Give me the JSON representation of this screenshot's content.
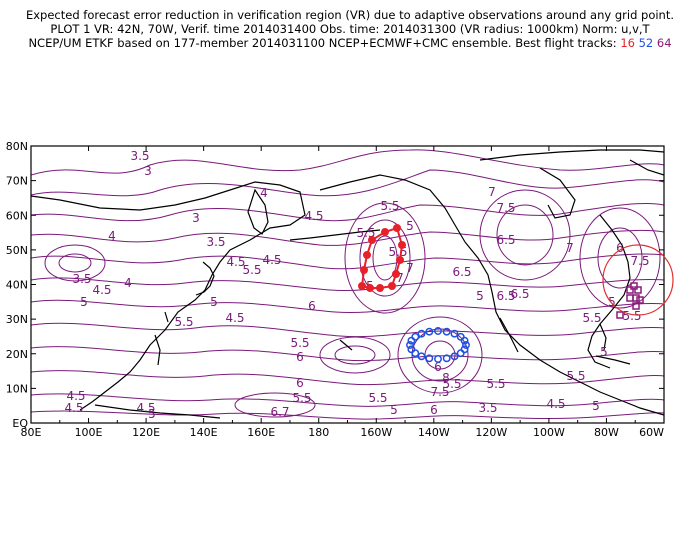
{
  "header": {
    "line1": "Expected forecast error reduction in verification region (VR) due to adaptive observations around any grid point.",
    "line2": "PLOT 1 VR: 42N, 70W, Verif. time 2014031400 Obs. time: 2014031300 (VR radius: 1000km) Norm: u,v,T",
    "line3_prefix": "NCEP/UM ETKF based on 177-member 2014031100 NCEP+ECMWF+CMC ensemble. Best flight tracks:",
    "track_a": "16",
    "track_b": "52",
    "track_c": "64"
  },
  "map": {
    "lat_labels": [
      "80N",
      "70N",
      "60N",
      "50N",
      "40N",
      "30N",
      "20N",
      "10N",
      "EQ"
    ],
    "lon_labels": [
      "80E",
      "100E",
      "120E",
      "140E",
      "160E",
      "180",
      "160W",
      "140W",
      "120W",
      "100W",
      "80W",
      "60W"
    ],
    "contour_labels": [
      "3.5",
      "3",
      "4",
      "3",
      "3.5",
      "4",
      "4.5",
      "5.5",
      "5",
      "4.5",
      "4",
      "3.5",
      "4.5",
      "5",
      "5.5",
      "4.5",
      "6",
      "5.5",
      "7",
      "5",
      "5.5",
      "6",
      "6.5",
      "7",
      "7.5",
      "7",
      "6.5",
      "5.5",
      "5",
      "4.5",
      "5.5",
      "6.5",
      "6",
      "7.5",
      "7",
      "5.5",
      "6",
      "5.5",
      "5",
      "5",
      "6.5",
      "5",
      "5.5",
      "6.7",
      "5.5",
      "5",
      "4.5",
      "7.5",
      "8",
      "5.5",
      "6",
      "6",
      "3.5",
      "5.5",
      "4.5",
      "4.5",
      "5",
      "5.5",
      "4.5",
      "5"
    ],
    "colors": {
      "contour": "#7a1a7a",
      "coast": "#000000",
      "track_a": "#e8202a",
      "track_b": "#2050e0",
      "track_c": "#8b1a7a",
      "vr_circle": "#e03030"
    }
  }
}
